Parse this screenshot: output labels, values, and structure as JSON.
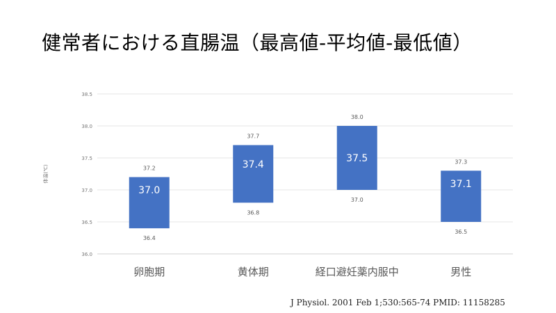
{
  "title": "健常者における直腸温（最高値-平均値-最低値）",
  "citation": "J Physiol. 2001 Feb 1;530:565-74 PMID: 11158285",
  "chart_data": {
    "type": "bar",
    "subtype": "floating-range",
    "ylabel": "体温(℃)",
    "ylim": [
      36.0,
      38.5
    ],
    "yticks": [
      "36.0",
      "36.5",
      "37.0",
      "37.5",
      "38.0",
      "38.5"
    ],
    "grid": true,
    "categories": [
      "卵胞期",
      "黄体期",
      "経口避妊薬内服中",
      "男性"
    ],
    "max": [
      37.2,
      37.7,
      38.0,
      37.3
    ],
    "mean": [
      37.0,
      37.4,
      37.5,
      37.1
    ],
    "min": [
      36.4,
      36.8,
      37.0,
      36.5
    ],
    "max_labels": [
      "37.2",
      "37.7",
      "38.0",
      "37.3"
    ],
    "mean_labels": [
      "37.0",
      "37.4",
      "37.5",
      "37.1"
    ],
    "min_labels": [
      "36.4",
      "36.8",
      "37.0",
      "36.5"
    ],
    "bar_color": "#4472C4"
  }
}
